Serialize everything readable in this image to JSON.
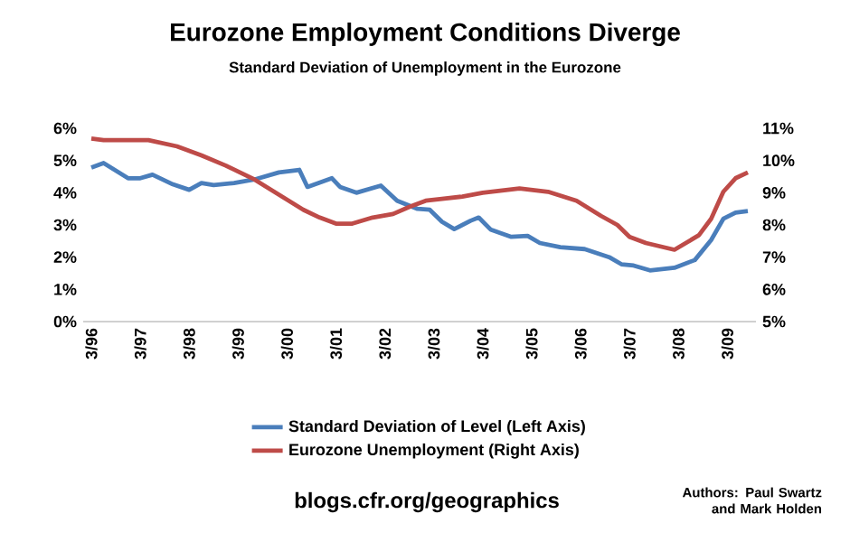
{
  "chart_data": {
    "type": "line",
    "title": "Eurozone Employment Conditions Diverge",
    "subtitle": "Standard Deviation of Unemployment in the Eurozone",
    "x": [
      "1996-03",
      "1996-06",
      "1996-12",
      "1997-03",
      "1997-06",
      "1997-11",
      "1998-03",
      "1998-06",
      "1998-09",
      "1999-02",
      "1999-07",
      "2000-01",
      "2000-06",
      "2000-08",
      "2001-02",
      "2001-04",
      "2001-08",
      "2002-02",
      "2002-06",
      "2002-11",
      "2003-02",
      "2003-05",
      "2003-08",
      "2003-12",
      "2004-02",
      "2004-05",
      "2004-10",
      "2005-02",
      "2005-05",
      "2005-10",
      "2006-04",
      "2006-10",
      "2007-01",
      "2007-04",
      "2007-08",
      "2008-02",
      "2008-07",
      "2008-11",
      "2009-02",
      "2009-05",
      "2009-08"
    ],
    "series": [
      {
        "name": "Standard Deviation of Level (Left Axis)",
        "color": "#4a7ebb",
        "values": [
          4.78,
          4.92,
          4.45,
          4.45,
          4.56,
          4.26,
          4.09,
          4.3,
          4.24,
          4.3,
          4.41,
          4.63,
          4.71,
          4.18,
          4.45,
          4.18,
          4.0,
          4.22,
          3.75,
          3.5,
          3.47,
          3.1,
          2.87,
          3.13,
          3.23,
          2.85,
          2.63,
          2.66,
          2.44,
          2.31,
          2.25,
          2.0,
          1.78,
          1.74,
          1.59,
          1.67,
          1.91,
          2.53,
          3.19,
          3.38,
          3.43
        ]
      },
      {
        "name": "Eurozone Unemployment (Right Axis)",
        "color": "#be4b48",
        "axis": "y2",
        "x": [
          "1996-03",
          "1996-06",
          "1997-05",
          "1997-12",
          "1998-06",
          "1998-12",
          "1999-07",
          "2000-01",
          "2000-07",
          "2000-11",
          "2001-03",
          "2001-07",
          "2001-12",
          "2002-05",
          "2002-09",
          "2003-01",
          "2003-05",
          "2003-10",
          "2004-03",
          "2004-12",
          "2005-07",
          "2006-02",
          "2006-08",
          "2006-12",
          "2007-03",
          "2007-07",
          "2008-02",
          "2008-08",
          "2008-11",
          "2009-02",
          "2009-05",
          "2009-08"
        ],
        "values": [
          10.68,
          10.63,
          10.63,
          10.44,
          10.16,
          9.84,
          9.41,
          8.94,
          8.47,
          8.23,
          8.04,
          8.04,
          8.23,
          8.34,
          8.56,
          8.75,
          8.81,
          8.88,
          9.0,
          9.13,
          9.03,
          8.75,
          8.28,
          8.0,
          7.63,
          7.44,
          7.23,
          7.68,
          8.19,
          9.03,
          9.45,
          9.63
        ]
      }
    ],
    "xlim": [
      "1996-01",
      "2009-10"
    ],
    "xticks": [
      {
        "value": "1996-03",
        "label": "3/96"
      },
      {
        "value": "1997-03",
        "label": "3/97"
      },
      {
        "value": "1998-03",
        "label": "3/98"
      },
      {
        "value": "1999-03",
        "label": "3/99"
      },
      {
        "value": "2000-03",
        "label": "3/00"
      },
      {
        "value": "2001-03",
        "label": "3/01"
      },
      {
        "value": "2002-03",
        "label": "3/02"
      },
      {
        "value": "2003-03",
        "label": "3/03"
      },
      {
        "value": "2004-03",
        "label": "3/04"
      },
      {
        "value": "2005-03",
        "label": "3/05"
      },
      {
        "value": "2006-03",
        "label": "3/06"
      },
      {
        "value": "2007-03",
        "label": "3/07"
      },
      {
        "value": "2008-03",
        "label": "3/08"
      },
      {
        "value": "2009-03",
        "label": "3/09"
      }
    ],
    "ylim": [
      0,
      6
    ],
    "yticks": [
      {
        "value": 0,
        "label": "0%"
      },
      {
        "value": 1,
        "label": "1%"
      },
      {
        "value": 2,
        "label": "2%"
      },
      {
        "value": 3,
        "label": "3%"
      },
      {
        "value": 4,
        "label": "4%"
      },
      {
        "value": 5,
        "label": "5%"
      },
      {
        "value": 6,
        "label": "6%"
      }
    ],
    "y2lim": [
      5,
      11
    ],
    "y2ticks": [
      {
        "value": 5,
        "label": "5%"
      },
      {
        "value": 6,
        "label": "6%"
      },
      {
        "value": 7,
        "label": "7%"
      },
      {
        "value": 8,
        "label": "8%"
      },
      {
        "value": 9,
        "label": "9%"
      },
      {
        "value": 10,
        "label": "10%"
      },
      {
        "value": 11,
        "label": "11%"
      }
    ],
    "legend": "bottom",
    "annotations": [
      "blogs.cfr.org/geographics",
      "Authors: Paul Swartz and Mark Holden"
    ]
  }
}
